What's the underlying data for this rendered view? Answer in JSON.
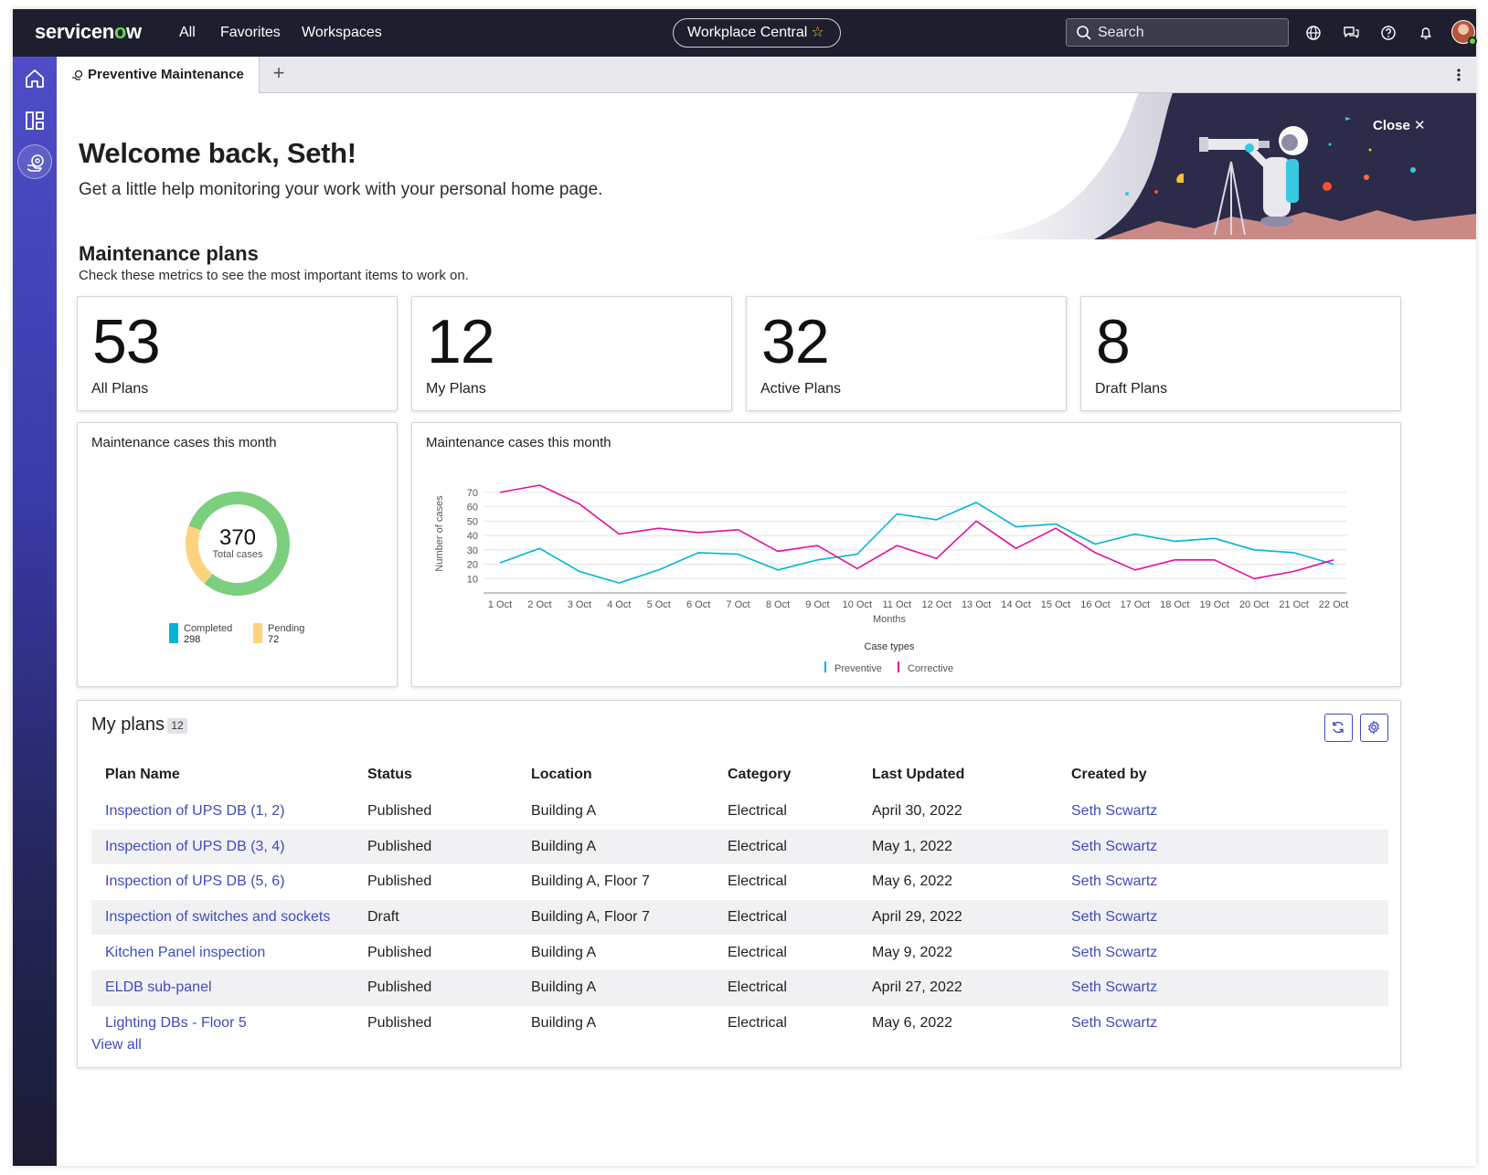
{
  "topbar": {
    "logo_text_1": "servicen",
    "logo_text_2": "o",
    "logo_text_3": "w",
    "nav": [
      "All",
      "Favorites",
      "Workspaces"
    ],
    "workspace_label": "Workplace Central",
    "workspace_star": "☆",
    "search_placeholder": "Search"
  },
  "tabs": {
    "active_label": "Preventive Maintenance",
    "add_label": "+"
  },
  "banner": {
    "close_label": "Close",
    "close_icon": "✕",
    "title": "Welcome back, Seth!",
    "subtitle": "Get a little help monitoring your work with your personal home page."
  },
  "section": {
    "title": "Maintenance plans",
    "subtitle": "Check these metrics to see the most important items to work on."
  },
  "metrics": [
    {
      "value": "53",
      "label": "All Plans"
    },
    {
      "value": "12",
      "label": "My Plans"
    },
    {
      "value": "32",
      "label": "Active Plans"
    },
    {
      "value": "8",
      "label": "Draft Plans"
    }
  ],
  "donut": {
    "title": "Maintenance cases this month",
    "total": "370",
    "total_caption": "Total cases",
    "segments": [
      {
        "label": "Completed",
        "value": 298,
        "display": "298",
        "chart_color": "#7ccf7e",
        "legend_color": "#00b3d6"
      },
      {
        "label": "Pending",
        "value": 72,
        "display": "72",
        "chart_color": "#fdd37f",
        "legend_color": "#fdd37f"
      }
    ]
  },
  "line_chart": {
    "title": "Maintenance cases this month"
  },
  "chart_data": [
    {
      "type": "pie",
      "title": "Maintenance cases this month",
      "categories": [
        "Completed",
        "Pending"
      ],
      "values": [
        298,
        72
      ],
      "total": 370
    },
    {
      "type": "line",
      "title": "Maintenance cases this month",
      "xlabel": "Months",
      "ylabel": "Number of cases",
      "legend_title": "Case types",
      "categories": [
        "1 Oct",
        "2 Oct",
        "3 Oct",
        "4 Oct",
        "5 Oct",
        "6 Oct",
        "7 Oct",
        "8 Oct",
        "9 Oct",
        "10 Oct",
        "11 Oct",
        "12 Oct",
        "13 Oct",
        "14 Oct",
        "15 Oct",
        "16 Oct",
        "17 Oct",
        "18 Oct",
        "19 Oct",
        "20 Oct",
        "21 Oct",
        "22 Oct"
      ],
      "yticks": [
        10,
        20,
        30,
        40,
        50,
        60,
        70
      ],
      "ylim": [
        0,
        75
      ],
      "series": [
        {
          "name": "Preventive",
          "color": "#00b3d6",
          "values": [
            21,
            31,
            15,
            7,
            16,
            28,
            27,
            16,
            23,
            27,
            55,
            51,
            63,
            46,
            48,
            34,
            41,
            36,
            38,
            30,
            28,
            20
          ]
        },
        {
          "name": "Corrective",
          "color": "#e20ea0",
          "values": [
            70,
            75,
            62,
            41,
            45,
            42,
            44,
            29,
            33,
            17,
            33,
            24,
            50,
            31,
            45,
            28,
            16,
            23,
            23,
            10,
            15,
            23
          ]
        }
      ]
    }
  ],
  "plans": {
    "title": "My plans",
    "count": "12",
    "columns": [
      "Plan Name",
      "Status",
      "Location",
      "Category",
      "Last Updated",
      "Created by"
    ],
    "rows": [
      [
        "Inspection of UPS DB (1, 2)",
        "Published",
        "Building A",
        "Electrical",
        "April 30, 2022",
        "Seth Scwartz"
      ],
      [
        "Inspection of UPS DB (3, 4)",
        "Published",
        "Building A",
        "Electrical",
        "May 1, 2022",
        "Seth Scwartz"
      ],
      [
        "Inspection of UPS DB (5, 6)",
        "Published",
        "Building A, Floor 7",
        "Electrical",
        "May 6, 2022",
        "Seth Scwartz"
      ],
      [
        "Inspection of switches and sockets",
        "Draft",
        "Building A, Floor 7",
        "Electrical",
        "April 29, 2022",
        "Seth Scwartz"
      ],
      [
        "Kitchen Panel inspection",
        "Published",
        "Building A",
        "Electrical",
        "May 9, 2022",
        "Seth Scwartz"
      ],
      [
        "ELDB sub-panel",
        "Published",
        "Building A",
        "Electrical",
        "April 27, 2022",
        "Seth Scwartz"
      ],
      [
        "Lighting DBs - Floor 5",
        "Published",
        "Building A",
        "Electrical",
        "May 6, 2022",
        "Seth Scwartz"
      ]
    ],
    "view_all": "View all"
  },
  "colors": {
    "topbar": "#1e1f2e",
    "accent_link": "#3f4bbf",
    "preventive": "#00b3d6",
    "corrective": "#e20ea0"
  }
}
